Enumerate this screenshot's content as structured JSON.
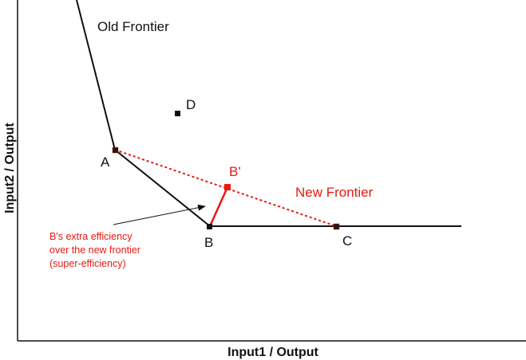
{
  "axes": {
    "x_label": "Input1 / Output",
    "y_label": "Input2 / Output"
  },
  "labels": {
    "old_frontier": "Old Frontier",
    "new_frontier": "New Frontier",
    "point_a": "A",
    "point_b": "B",
    "point_b_prime": "B'",
    "point_c": "C",
    "point_d": "D"
  },
  "annotation": {
    "lines": [
      "B's extra efficiency",
      "over the new frontier",
      "(super-efficiency)"
    ]
  },
  "colors": {
    "old_frontier": "#111111",
    "new_frontier": "#e8190f",
    "annotation": "#e8190f"
  }
}
